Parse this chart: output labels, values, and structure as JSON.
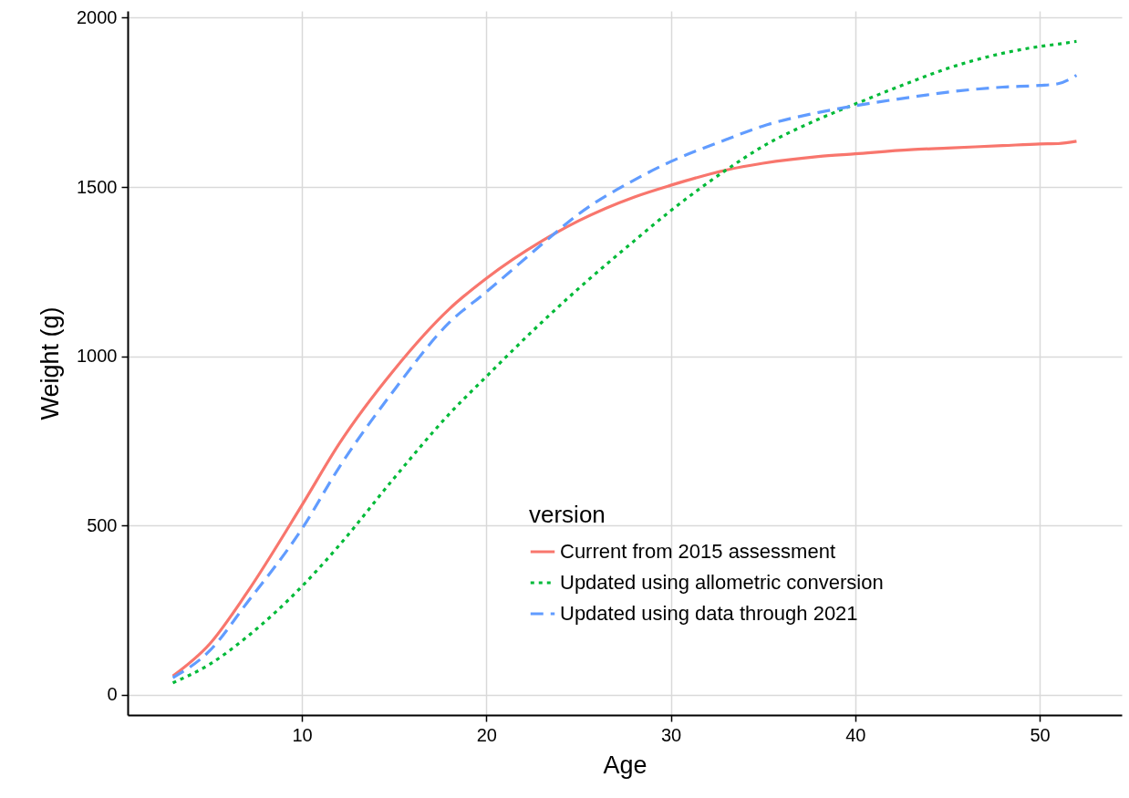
{
  "chart_data": {
    "type": "line",
    "xlabel": "Age",
    "ylabel": "Weight (g)",
    "legend_title": "version",
    "x": [
      3,
      5,
      7,
      10,
      12,
      15,
      18,
      20,
      23,
      25,
      28,
      30,
      33,
      35,
      38,
      40,
      43,
      45,
      48,
      50,
      51,
      52
    ],
    "xlim": [
      0.55,
      54.45
    ],
    "ylim": [
      -60,
      2020
    ],
    "xticks": [
      10,
      20,
      30,
      40,
      50
    ],
    "yticks": [
      0,
      500,
      1000,
      1500,
      2000
    ],
    "grid": true,
    "legend": "bottom",
    "series": [
      {
        "name": "Current from 2015 assessment",
        "color": "#f8766d",
        "line_style": "solid",
        "values": [
          55,
          150,
          300,
          560,
          740,
          960,
          1140,
          1230,
          1340,
          1400,
          1470,
          1505,
          1550,
          1570,
          1590,
          1598,
          1610,
          1615,
          1622,
          1627,
          1628,
          1635
        ]
      },
      {
        "name": "Updated using allometric conversion",
        "color": "#00ba38",
        "line_style": "dotted",
        "values": [
          35,
          90,
          170,
          320,
          440,
          640,
          830,
          940,
          1100,
          1200,
          1340,
          1430,
          1550,
          1620,
          1700,
          1745,
          1810,
          1850,
          1895,
          1915,
          1922,
          1930
        ]
      },
      {
        "name": "Updated using data through 2021",
        "color": "#619cff",
        "line_style": "dashed",
        "values": [
          50,
          130,
          270,
          490,
          670,
          900,
          1100,
          1190,
          1330,
          1420,
          1520,
          1575,
          1640,
          1680,
          1720,
          1740,
          1765,
          1780,
          1795,
          1800,
          1805,
          1830
        ]
      }
    ]
  }
}
